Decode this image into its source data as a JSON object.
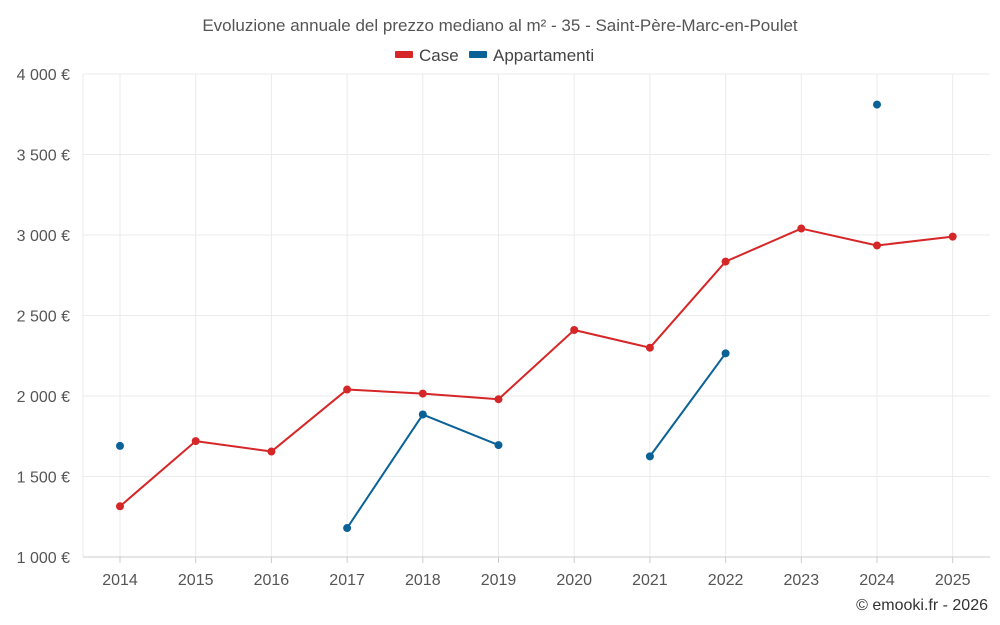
{
  "chart_data": {
    "type": "line",
    "title": "Evoluzione annuale del prezzo mediano al m² - 35 - Saint-Père-Marc-en-Poulet",
    "x": [
      "2014",
      "2015",
      "2016",
      "2017",
      "2018",
      "2019",
      "2020",
      "2021",
      "2022",
      "2023",
      "2024",
      "2025"
    ],
    "ylim": [
      1000,
      4000
    ],
    "yticks": [
      1000,
      1500,
      2000,
      2500,
      3000,
      3500,
      4000
    ],
    "ytick_labels": [
      "1 000 €",
      "1 500 €",
      "2 000 €",
      "2 500 €",
      "3 000 €",
      "3 500 €",
      "4 000 €"
    ],
    "legend_position": "top-center",
    "grid": true,
    "series": [
      {
        "name": "Case",
        "color": "#d62728",
        "values": [
          1315,
          1720,
          1655,
          2040,
          2015,
          1980,
          2410,
          2300,
          2835,
          3040,
          2935,
          2990
        ]
      },
      {
        "name": "Appartamenti",
        "color": "#0a6296",
        "values": [
          1690,
          null,
          null,
          1180,
          1885,
          1695,
          null,
          1625,
          2265,
          null,
          3810,
          null
        ]
      }
    ],
    "credit": "© emooki.fr - 2026"
  }
}
